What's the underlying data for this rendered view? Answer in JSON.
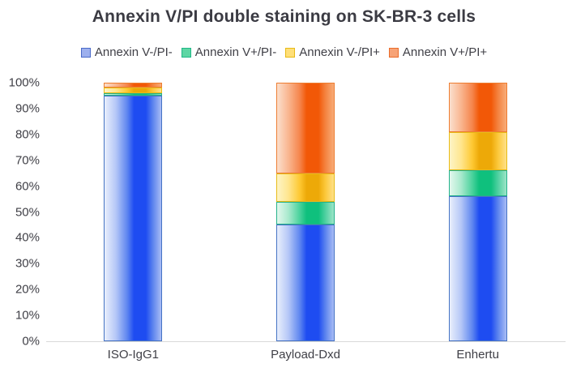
{
  "chart_data": {
    "type": "bar",
    "stacked": true,
    "title": "Annexin V/PI double staining on SK-BR-3 cells",
    "categories": [
      "ISO-IgG1",
      "Payload-Dxd",
      "Enhertu"
    ],
    "series": [
      {
        "name": "Annexin V-/PI-",
        "values": [
          95,
          45,
          56
        ],
        "color": "#1e4cf1",
        "border_color": "#4472c4"
      },
      {
        "name": "Annexin V+/PI-",
        "values": [
          1,
          9,
          10
        ],
        "color": "#0fc07d",
        "border_color": "#23b18a"
      },
      {
        "name": "Annexin V-/PI+",
        "values": [
          2,
          11,
          15
        ],
        "color": "#eda908",
        "border_color": "#e8ba16"
      },
      {
        "name": "Annexin V+/PI+",
        "values": [
          2,
          35,
          19
        ],
        "color": "#f25807",
        "border_color": "#ed7d31"
      }
    ],
    "xlabel": "",
    "ylabel": "",
    "ylim": [
      0,
      100
    ],
    "yticks": [
      "0%",
      "10%",
      "20%",
      "30%",
      "40%",
      "50%",
      "60%",
      "70%",
      "80%",
      "90%",
      "100%"
    ],
    "grid": false,
    "legend_position": "top",
    "axis_line_color": "#d9d9d9",
    "text_color": "#3f3f46",
    "title_color": "#3b3b43"
  }
}
